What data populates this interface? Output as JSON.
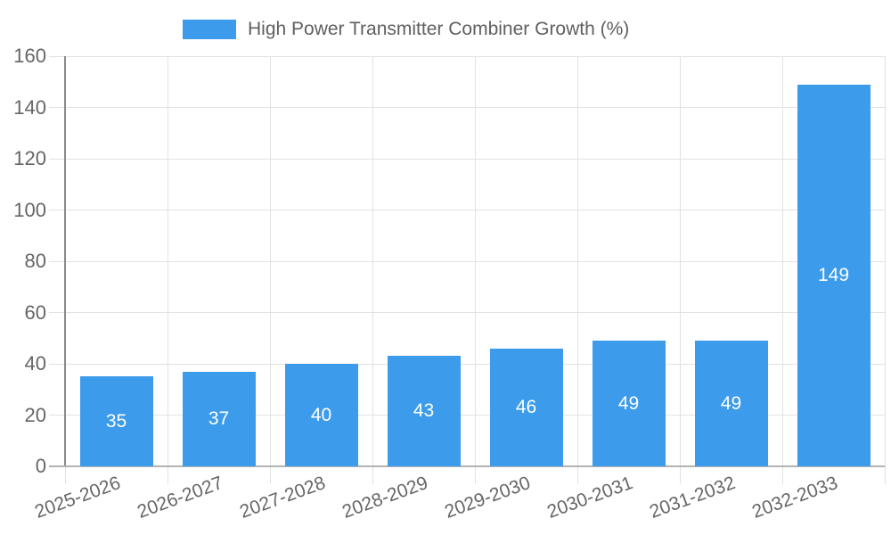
{
  "chart_data": {
    "type": "bar",
    "title": "High Power Transmitter Combiner Growth (%)",
    "categories": [
      "2025-2026",
      "2026-2027",
      "2027-2028",
      "2028-2029",
      "2029-2030",
      "2030-2031",
      "2031-2032",
      "2032-2033"
    ],
    "values": [
      35,
      37,
      40,
      43,
      46,
      49,
      49,
      149
    ],
    "xlabel": "",
    "ylabel": "",
    "ylim": [
      0,
      160
    ],
    "yticks": [
      0,
      20,
      40,
      60,
      80,
      100,
      120,
      140,
      160
    ],
    "grid": true,
    "legend_position": "top",
    "value_label_position": "inside-center",
    "colors": {
      "bar": "#3C9BEB",
      "gridline": "#e2e2e2",
      "axis_y": "#8a8a8a",
      "axis_x": "#b3b3b3",
      "tick_text": "#666666",
      "legend_text": "#5f5f5f",
      "value_text": "#ffffff",
      "background": "#ffffff"
    }
  }
}
